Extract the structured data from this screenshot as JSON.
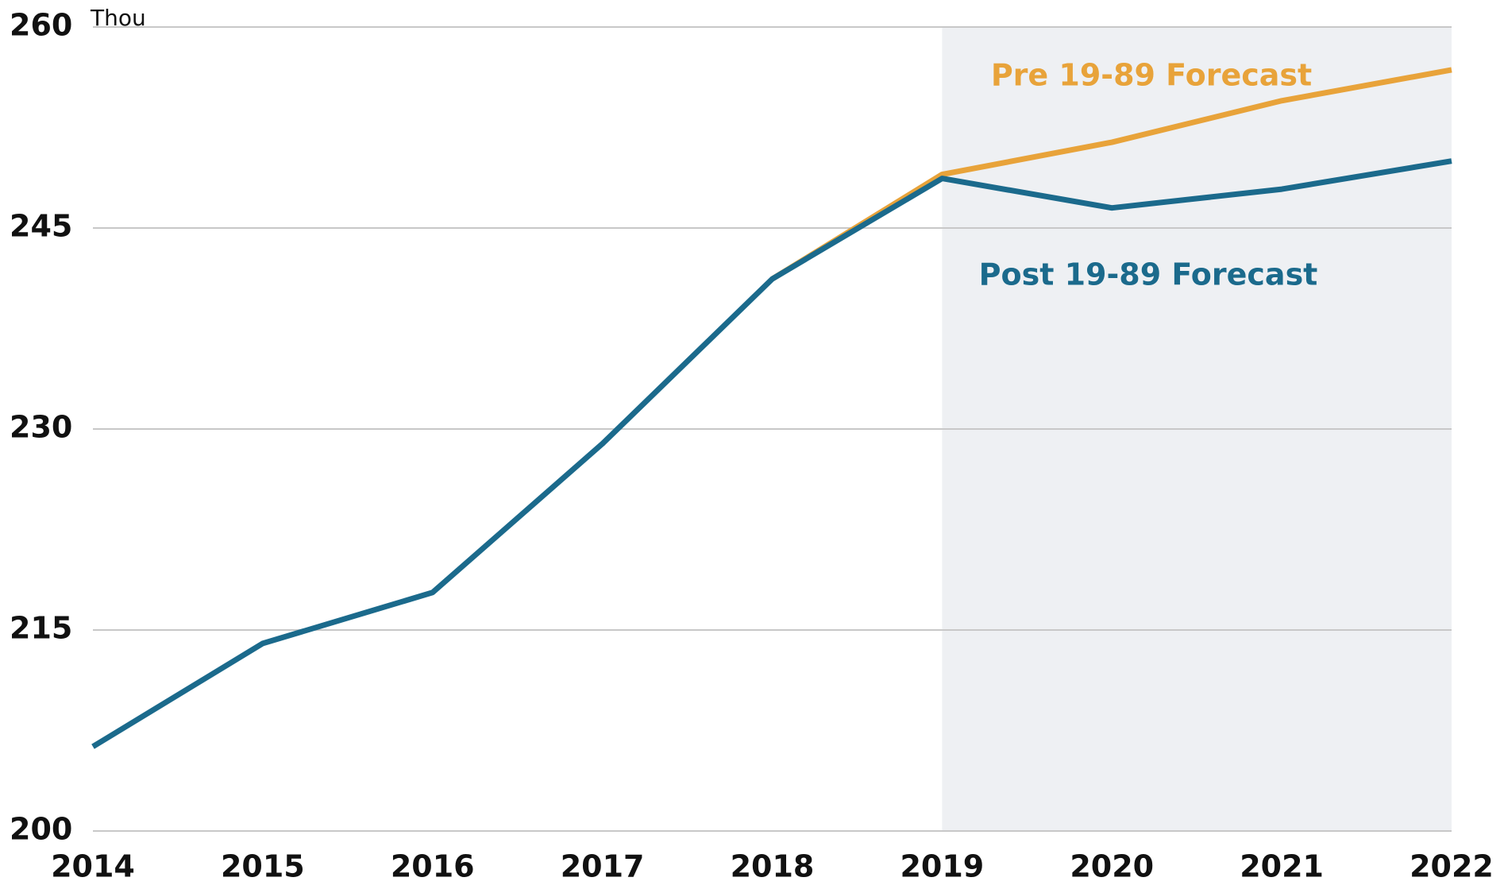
{
  "chart_data": {
    "type": "line",
    "unit_label": "Thou",
    "x": [
      2014,
      2015,
      2016,
      2017,
      2018,
      2019,
      2020,
      2021,
      2022
    ],
    "series": [
      {
        "name": "Pre 19-89 Forecast",
        "color": "#e8a33a",
        "values": [
          null,
          null,
          null,
          null,
          241.2,
          249.0,
          251.4,
          254.5,
          256.8
        ]
      },
      {
        "name": "Post 19-89 Forecast",
        "color": "#1b6a8c",
        "values": [
          206.3,
          214.0,
          217.8,
          228.9,
          241.2,
          248.7,
          246.5,
          247.9,
          250.0
        ]
      }
    ],
    "xlim": [
      2014,
      2022
    ],
    "xticks": [
      2014,
      2015,
      2016,
      2017,
      2018,
      2019,
      2020,
      2021,
      2022
    ],
    "ylim": [
      200,
      260
    ],
    "yticks": [
      200,
      215,
      230,
      245,
      260
    ],
    "grid": true,
    "forecast_start": 2019
  }
}
